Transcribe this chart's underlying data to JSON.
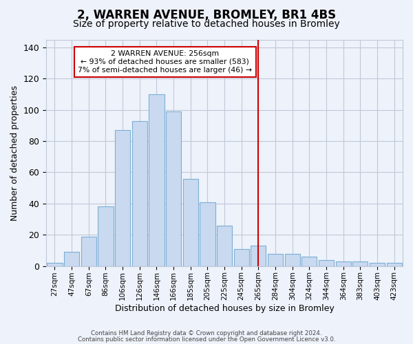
{
  "title": "2, WARREN AVENUE, BROMLEY, BR1 4BS",
  "subtitle": "Size of property relative to detached houses in Bromley",
  "xlabel": "Distribution of detached houses by size in Bromley",
  "ylabel": "Number of detached properties",
  "categories": [
    "27sqm",
    "47sqm",
    "67sqm",
    "86sqm",
    "106sqm",
    "126sqm",
    "146sqm",
    "166sqm",
    "185sqm",
    "205sqm",
    "225sqm",
    "245sqm",
    "265sqm",
    "284sqm",
    "304sqm",
    "324sqm",
    "344sqm",
    "364sqm",
    "383sqm",
    "403sqm",
    "423sqm"
  ],
  "values": [
    2,
    9,
    19,
    38,
    87,
    93,
    110,
    99,
    56,
    41,
    26,
    11,
    13,
    8,
    8,
    6,
    4,
    3,
    3,
    2,
    2
  ],
  "bar_color": "#c9d9f0",
  "bar_edge_color": "#7bafd4",
  "grid_color": "#c0c8d8",
  "vline_x": 12,
  "vline_color": "#cc0000",
  "annotation_line1": "2 WARREN AVENUE: 256sqm",
  "annotation_line2": "← 93% of detached houses are smaller (583)",
  "annotation_line3": "7% of semi-detached houses are larger (46) →",
  "annotation_box_color": "#ffffff",
  "annotation_box_edge_color": "#cc0000",
  "ylim": [
    0,
    145
  ],
  "yticks": [
    0,
    20,
    40,
    60,
    80,
    100,
    120,
    140
  ],
  "footer1": "Contains HM Land Registry data © Crown copyright and database right 2024.",
  "footer2": "Contains public sector information licensed under the Open Government Licence v3.0.",
  "background_color": "#eef2fa",
  "title_fontsize": 12,
  "subtitle_fontsize": 10
}
